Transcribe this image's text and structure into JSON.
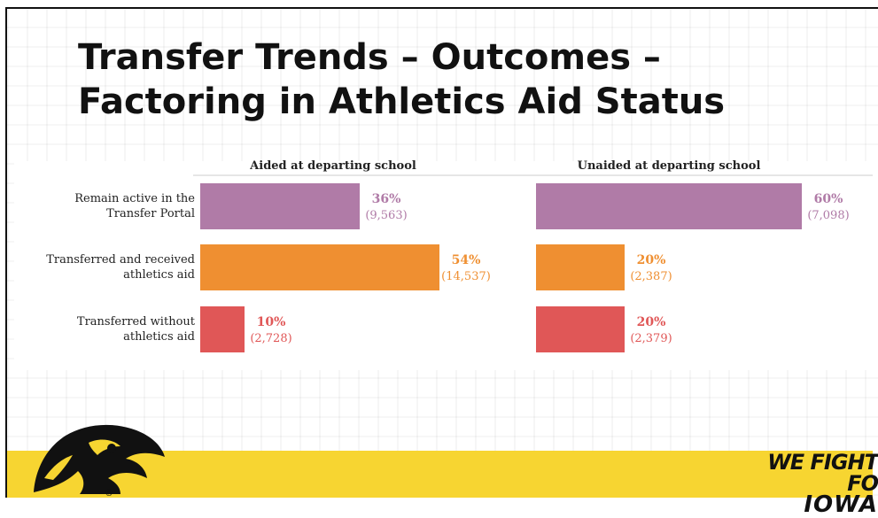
{
  "slide": {
    "title_line1": "Transfer Trends – Outcomes –",
    "title_line2": "Factoring in Athletics Aid Status",
    "slogan_line1": "WE FIGHT FO",
    "slogan_line2": "IOWA"
  },
  "chart_data": {
    "type": "bar",
    "orientation": "horizontal",
    "categories": [
      [
        "Remain active in the",
        "Transfer Portal"
      ],
      [
        "Transferred and received",
        "athletics aid"
      ],
      [
        "Transferred without",
        "athletics aid"
      ]
    ],
    "bar_colors": [
      "#b07ba7",
      "#ef8f31",
      "#e05757"
    ],
    "xlim": [
      0,
      60
    ],
    "panels": [
      {
        "title": "Aided at departing school",
        "percent_values": [
          36,
          54,
          10
        ],
        "percent_labels": [
          "36%",
          "54%",
          "10%"
        ],
        "count_labels": [
          "(9,563)",
          "(14,537)",
          "(2,728)"
        ]
      },
      {
        "title": "Unaided at departing school",
        "percent_values": [
          60,
          20,
          20
        ],
        "percent_labels": [
          "60%",
          "20%",
          "20%"
        ],
        "count_labels": [
          "(7,098)",
          "(2,387)",
          "(2,379)"
        ]
      }
    ]
  }
}
